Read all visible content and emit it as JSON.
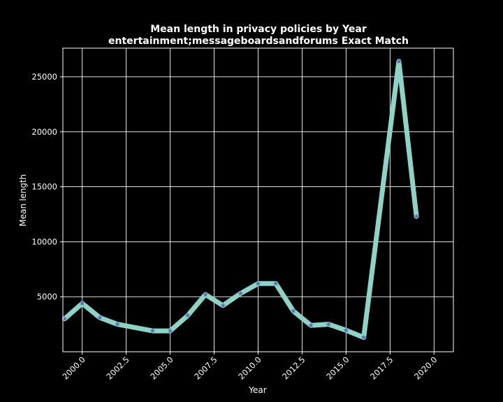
{
  "colors": {
    "background": "#000000",
    "axes_frame": "#ffffff",
    "grid": "#ffffff",
    "line": "#8dd3c7",
    "marker": "#5b6fb5",
    "text": "#ffffff"
  },
  "chart_data": {
    "type": "line",
    "title": "Mean length in privacy policies by Year",
    "subtitle": "entertainment;messageboardsandforums Exact Match",
    "xlabel": "Year",
    "ylabel": "Mean length",
    "xlim": [
      1998.9,
      2021.1
    ],
    "ylim": [
      0,
      27600
    ],
    "xticks": [
      2000.0,
      2002.5,
      2005.0,
      2007.5,
      2010.0,
      2012.5,
      2015.0,
      2017.5,
      2020.0
    ],
    "xtick_labels": [
      "2000.0",
      "2002.5",
      "2005.0",
      "2007.5",
      "2010.0",
      "2012.5",
      "2015.0",
      "2017.5",
      "2020.0"
    ],
    "yticks": [
      5000,
      10000,
      15000,
      20000,
      25000
    ],
    "ytick_labels": [
      "5000",
      "10000",
      "15000",
      "20000",
      "25000"
    ],
    "grid": true,
    "marker": "star",
    "series": [
      {
        "x": [
          1999,
          2000,
          2001,
          2002,
          2004,
          2005,
          2006,
          2007,
          2008,
          2009,
          2010,
          2011,
          2012,
          2013,
          2014,
          2015,
          2016,
          2018,
          2019
        ],
        "values": [
          3000,
          4400,
          3100,
          2500,
          1900,
          1900,
          3300,
          5200,
          4200,
          5300,
          6200,
          6200,
          3700,
          2400,
          2500,
          1950,
          1300,
          26400,
          12300
        ]
      }
    ]
  }
}
